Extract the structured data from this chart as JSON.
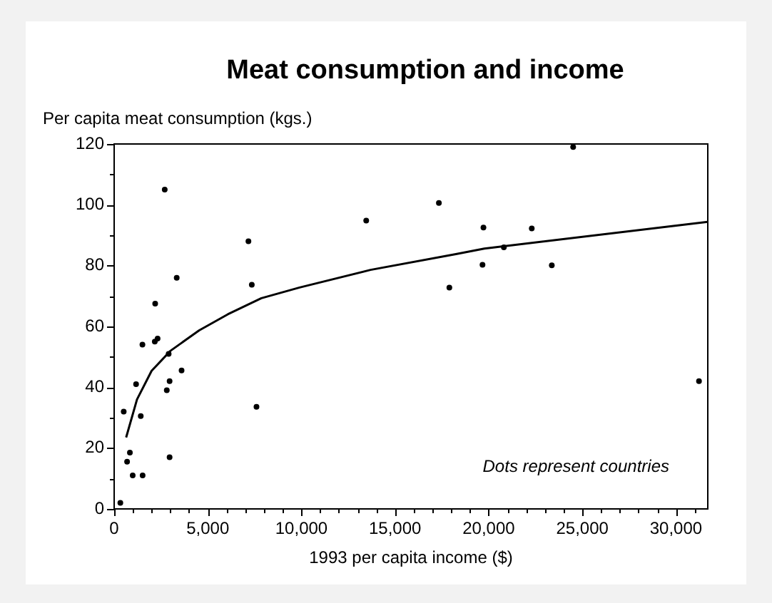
{
  "chart_data": {
    "type": "scatter",
    "title": "Meat consumption and income",
    "ylabel": "Per capita meat consumption (kgs.)",
    "xlabel": "1993 per capita income ($)",
    "annotations": [
      "Dots represent countries"
    ],
    "xlim": [
      0,
      31700
    ],
    "ylim": [
      0,
      120
    ],
    "xticks": [
      0,
      {
        "value": 1000,
        "label": null
      },
      {
        "value": 2000,
        "label": null
      },
      {
        "value": 3000,
        "label": null
      },
      {
        "value": 4000,
        "label": null
      },
      {
        "value": 5000,
        "label": "5,000"
      },
      {
        "value": 6000,
        "label": null
      },
      {
        "value": 7000,
        "label": null
      },
      {
        "value": 8000,
        "label": null
      },
      {
        "value": 9000,
        "label": null
      },
      {
        "value": 10000,
        "label": "10,000"
      },
      {
        "value": 11000,
        "label": null
      },
      {
        "value": 12000,
        "label": null
      },
      {
        "value": 13000,
        "label": null
      },
      {
        "value": 14000,
        "label": null
      },
      {
        "value": 15000,
        "label": "15,000"
      },
      {
        "value": 16000,
        "label": null
      },
      {
        "value": 17000,
        "label": null
      },
      {
        "value": 18000,
        "label": null
      },
      {
        "value": 19000,
        "label": null
      },
      {
        "value": 20000,
        "label": "20,000"
      },
      {
        "value": 21000,
        "label": null
      },
      {
        "value": 22000,
        "label": null
      },
      {
        "value": 23000,
        "label": null
      },
      {
        "value": 24000,
        "label": null
      },
      {
        "value": 25000,
        "label": "25,000"
      },
      {
        "value": 26000,
        "label": null
      },
      {
        "value": 27000,
        "label": null
      },
      {
        "value": 28000,
        "label": null
      },
      {
        "value": 29000,
        "label": null
      },
      {
        "value": 30000,
        "label": "30,000"
      },
      {
        "value": 31000,
        "label": null
      }
    ],
    "yticks": [
      0,
      {
        "value": 10,
        "label": null
      },
      20,
      {
        "value": 30,
        "label": null
      },
      40,
      {
        "value": 50,
        "label": null
      },
      60,
      {
        "value": 70,
        "label": null
      },
      80,
      {
        "value": 90,
        "label": null
      },
      100,
      {
        "value": 110,
        "label": null
      },
      120
    ],
    "grid": false,
    "legend": false,
    "series": [
      {
        "type": "scatter",
        "marker": "circle",
        "color": "#000000",
        "x": [
          330,
          510,
          690,
          840,
          990,
          1170,
          1420,
          1520,
          1510,
          2190,
          2170,
          2320,
          2700,
          2810,
          2910,
          2960,
          2960,
          3340,
          3600,
          7170,
          7350,
          7600,
          13460,
          17340,
          17900,
          19720,
          19670,
          20810,
          22300,
          23370,
          24510,
          31230
        ],
        "values": [
          2,
          32,
          15.5,
          18.5,
          11,
          41,
          30.5,
          11,
          54,
          67.5,
          55,
          56,
          105,
          39,
          51,
          42,
          17,
          76,
          45.5,
          88,
          73.7,
          33.6,
          94.8,
          100.6,
          72.8,
          92.5,
          80.3,
          86,
          92.2,
          80.1,
          119,
          42
        ]
      },
      {
        "type": "line",
        "marker": "none",
        "line_style": "solid",
        "color": "#000000",
        "x": [
          640,
          1220,
          2000,
          3010,
          4540,
          6070,
          7860,
          9900,
          13690,
          18250,
          19770,
          31700
        ],
        "values": [
          23.5,
          36,
          45.4,
          52,
          58.7,
          64,
          69.3,
          72.8,
          78.6,
          83.8,
          85.6,
          94.4
        ]
      }
    ]
  }
}
